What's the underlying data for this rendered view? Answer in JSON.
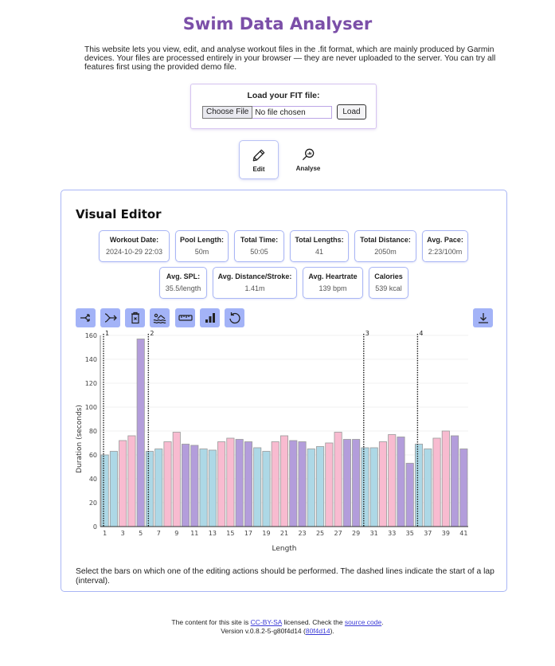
{
  "header": {
    "title": "Swim Data Analyser",
    "intro": "This website lets you view, edit, and analyse workout files in the .fit format, which are mainly produced by Garmin devices. Your files are processed entirely in your browser — they are never uploaded to the server. You can try all features first using the provided demo file."
  },
  "loader": {
    "label": "Load your FIT file:",
    "choose_file": "Choose File",
    "file_status": "No file chosen",
    "load_button": "Load"
  },
  "modes": [
    {
      "label": "Edit",
      "icon": "pencil-icon",
      "active": true
    },
    {
      "label": "Analyse",
      "icon": "magnifier-chart-icon",
      "active": false
    }
  ],
  "editor": {
    "title": "Visual Editor",
    "stats": [
      {
        "label": "Workout Date:",
        "value": "2024-10-29 22:03"
      },
      {
        "label": "Pool Length:",
        "value": "50m"
      },
      {
        "label": "Total Time:",
        "value": "50:05"
      },
      {
        "label": "Total Lengths:",
        "value": "41"
      },
      {
        "label": "Total Distance:",
        "value": "2050m"
      },
      {
        "label": "Avg. Pace:",
        "value": "2:23/100m"
      },
      {
        "label": "Avg. SPL:",
        "value": "35.5/length"
      },
      {
        "label": "Avg. Distance/Stroke:",
        "value": "1.41m"
      },
      {
        "label": "Avg. Heartrate",
        "value": "139 bpm"
      },
      {
        "label": "Calories",
        "value": "539 kcal"
      }
    ],
    "tools": [
      {
        "name": "split-lap-icon"
      },
      {
        "name": "merge-lap-icon"
      },
      {
        "name": "delete-icon"
      },
      {
        "name": "swim-stroke-icon"
      },
      {
        "name": "ruler-icon"
      },
      {
        "name": "bar-chart-icon"
      },
      {
        "name": "undo-icon"
      }
    ],
    "download_icon": "download-icon",
    "help": "Select the bars on which one of the editing actions should be performed. The dashed lines indicate the start of a lap (interval)."
  },
  "colors": {
    "blue": "#add8e6",
    "pink": "#f8bbd0",
    "purple": "#b39ddb",
    "accent": "#a3b3f7",
    "title": "#7b4fa8"
  },
  "chart_data": {
    "type": "bar",
    "title": "",
    "xlabel": "Length",
    "ylabel": "Duration (seconds)",
    "ylim": [
      0,
      160
    ],
    "yticks": [
      0,
      20,
      40,
      60,
      80,
      100,
      120,
      140,
      160
    ],
    "xticks": [
      1,
      3,
      5,
      7,
      9,
      11,
      13,
      15,
      17,
      19,
      21,
      23,
      25,
      27,
      29,
      31,
      33,
      35,
      37,
      39,
      41
    ],
    "grid": true,
    "categories": [
      1,
      2,
      3,
      4,
      5,
      6,
      7,
      8,
      9,
      10,
      11,
      12,
      13,
      14,
      15,
      16,
      17,
      18,
      19,
      20,
      21,
      22,
      23,
      24,
      25,
      26,
      27,
      28,
      29,
      30,
      31,
      32,
      33,
      34,
      35,
      36,
      37,
      38,
      39,
      40,
      41
    ],
    "values": [
      60,
      63,
      72,
      76,
      157,
      63,
      65,
      71,
      79,
      69,
      68,
      65,
      64,
      71,
      74,
      73,
      71,
      66,
      63,
      71,
      76,
      72,
      71,
      65,
      67,
      70,
      79,
      73,
      73,
      66,
      66,
      71,
      77,
      75,
      53,
      69,
      65,
      74,
      80,
      76,
      65
    ],
    "bar_colors": [
      "blue",
      "blue",
      "pink",
      "pink",
      "purple",
      "blue",
      "blue",
      "pink",
      "pink",
      "purple",
      "purple",
      "blue",
      "blue",
      "pink",
      "pink",
      "purple",
      "purple",
      "blue",
      "blue",
      "pink",
      "pink",
      "purple",
      "purple",
      "blue",
      "blue",
      "pink",
      "pink",
      "purple",
      "purple",
      "blue",
      "blue",
      "pink",
      "pink",
      "purple",
      "purple",
      "blue",
      "blue",
      "pink",
      "pink",
      "purple",
      "purple"
    ],
    "lap_markers": [
      {
        "label": "1",
        "at_length": 1
      },
      {
        "label": "2",
        "at_length": 6
      },
      {
        "label": "3",
        "at_length": 30
      },
      {
        "label": "4",
        "at_length": 36
      }
    ]
  },
  "footer": {
    "line1_pre": "The content for this site is ",
    "license_link": "CC-BY-SA",
    "line1_mid": " licensed. Check the ",
    "source_link": "source code",
    "line1_post": ".",
    "line2_pre": "Version v.0.8.2-5-g80f4d14 (",
    "commit_link": "80f4d14",
    "line2_post": ")."
  }
}
